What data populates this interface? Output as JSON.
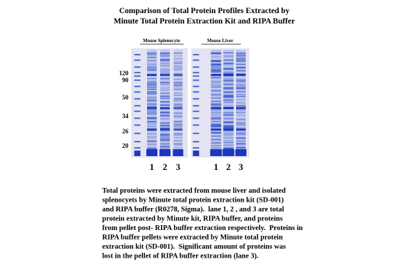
{
  "header": {
    "title_lines": [
      "Comparison of Total Protein Profiles Extracted by",
      "Minute Total Protein Extraction Kit and RIPA Buffer"
    ]
  },
  "figure": {
    "panels": [
      {
        "label": "Mouse Splenocyte",
        "lanes": [
          "1",
          "2",
          "3"
        ]
      },
      {
        "label": "Mouse Liver",
        "lanes": [
          "1",
          "2",
          "3"
        ]
      }
    ],
    "marker_labels": [
      "120",
      "90",
      "50",
      "34",
      "26",
      "20"
    ]
  },
  "caption": {
    "lines": [
      "Total proteins were extracted from mouse liver and isolated",
      "splenocyets by Minute total protein extraction kit (SD-001)",
      "and RIPA buffer (R0278, Sigma).  lane 1, 2 , and 3 are total",
      "protein extracted by Minute kit, RIPA buffer, and proteins",
      "from pellet post- RIPA buffer extraction respectively.  Proteins in",
      "RIPA buffer pellets were extracted by Minute total protein",
      "extraction kit (SD-001).  Significant amount of proteins was",
      "lost in the pellet of RIPA buffer extraction (lane 3)."
    ]
  }
}
